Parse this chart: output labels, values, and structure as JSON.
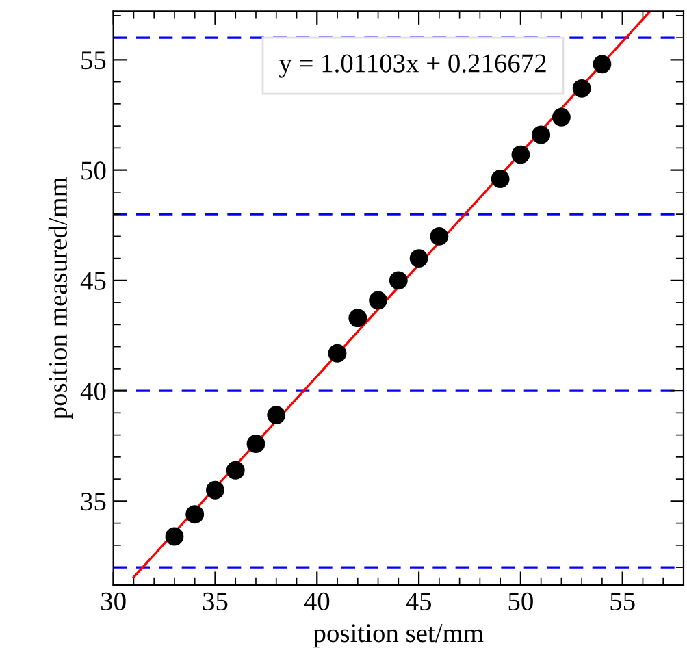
{
  "chart_data": {
    "type": "scatter",
    "xlabel": "position set/mm",
    "ylabel": "position measured/mm",
    "xlim": [
      30,
      58
    ],
    "ylim": [
      31.2,
      57.2
    ],
    "xticks": [
      30,
      35,
      40,
      45,
      50,
      55
    ],
    "yticks": [
      35,
      40,
      45,
      50,
      55
    ],
    "grid": false,
    "series": [
      {
        "marker": "circle",
        "color": "#000000",
        "x": [
          33,
          34,
          35,
          36,
          37,
          38,
          41,
          42,
          43,
          44,
          45,
          46,
          49,
          50,
          51,
          52,
          53,
          54
        ],
        "values": [
          33.4,
          34.4,
          35.5,
          36.4,
          37.6,
          38.9,
          41.7,
          43.3,
          44.1,
          45.0,
          46.0,
          47.0,
          49.6,
          50.7,
          51.6,
          52.4,
          53.7,
          54.8
        ]
      },
      {
        "type": "line",
        "marker": "none",
        "color": "#ff0000",
        "line_style": "solid",
        "x": [
          31,
          56.3
        ],
        "values": [
          31.56,
          57.14
        ]
      }
    ],
    "ref_lines": [
      {
        "axis": "y",
        "value": 32,
        "color": "#0000ff",
        "line_style": "dashed"
      },
      {
        "axis": "y",
        "value": 40,
        "color": "#0000ff",
        "line_style": "dashed"
      },
      {
        "axis": "y",
        "value": 48,
        "color": "#0000ff",
        "line_style": "dashed"
      },
      {
        "axis": "y",
        "value": 56,
        "color": "#0000ff",
        "line_style": "dashed"
      }
    ],
    "annotations": [
      "y = 1.01103x + 0.216672"
    ]
  }
}
